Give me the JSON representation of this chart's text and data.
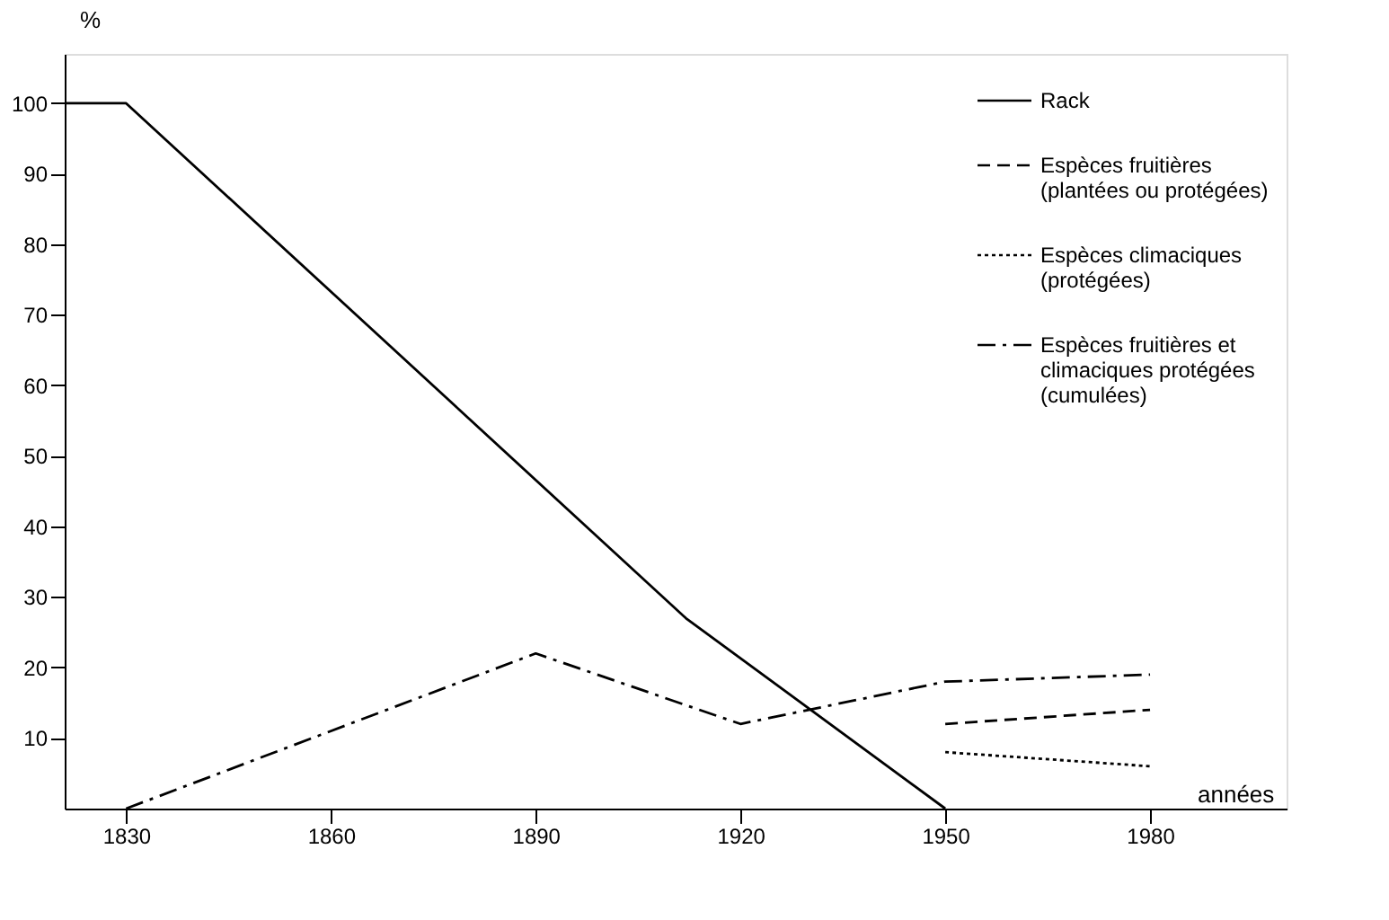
{
  "chart_data": {
    "type": "line",
    "xlabel": "années",
    "ylabel": "%",
    "xlim": [
      1821,
      2000
    ],
    "xticks": [
      1830,
      1860,
      1890,
      1920,
      1950,
      1980
    ],
    "ylim": [
      0,
      107
    ],
    "yticks": [
      10,
      20,
      30,
      40,
      50,
      60,
      70,
      80,
      90,
      100
    ],
    "grid": false,
    "legend": "top right",
    "marker": "none",
    "series": [
      {
        "name": "Rack",
        "color": "#000000",
        "line_style": "solid",
        "x": [
          1821,
          1830,
          1912,
          1950
        ],
        "values": [
          100,
          100,
          27,
          0
        ]
      },
      {
        "name": "Espèces fruitières (plantées ou protégées)",
        "color": "#000000",
        "line_style": "dashed",
        "x": [
          1950,
          1980
        ],
        "values": [
          12,
          14
        ]
      },
      {
        "name": "Espèces climaciques (protégées)",
        "color": "#000000",
        "line_style": "dotted",
        "x": [
          1950,
          1980
        ],
        "values": [
          8,
          6
        ]
      },
      {
        "name": "Espèces fruitières et climaciques protégées (cumulées)",
        "color": "#000000",
        "line_style": "dashdot",
        "x": [
          1830,
          1890,
          1920,
          1950,
          1980
        ],
        "values": [
          0,
          22,
          12,
          18,
          19
        ]
      }
    ]
  }
}
